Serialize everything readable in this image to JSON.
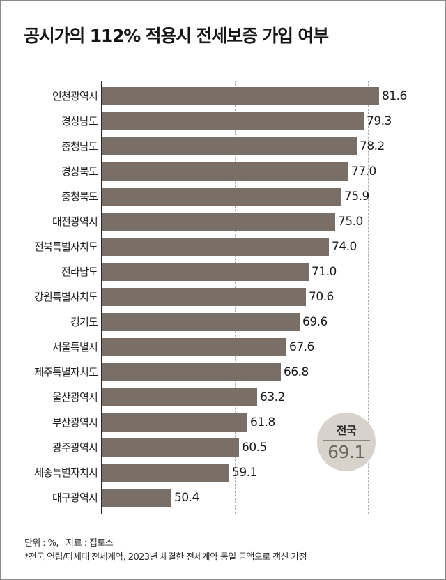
{
  "title": "공시가의 112% 적용시 전세보증 가입 여부",
  "chart_data": {
    "type": "bar",
    "orientation": "horizontal",
    "title": "공시가의 112% 적용시 전세보증 가입 여부",
    "xlabel": "",
    "ylabel": "",
    "unit": "%",
    "xlim": [
      40,
      85
    ],
    "gridlines": [
      50,
      60,
      70,
      80
    ],
    "grid": true,
    "categories": [
      "인천광역시",
      "경상남도",
      "충청남도",
      "경상북도",
      "충청북도",
      "대전광역시",
      "전북특별자치도",
      "전라남도",
      "강원특별자치도",
      "경기도",
      "서울특별시",
      "제주특별자치도",
      "울산광역시",
      "부산광역시",
      "광주광역시",
      "세종특별자치시",
      "대구광역시"
    ],
    "values": [
      81.6,
      79.3,
      78.2,
      77.0,
      75.9,
      75.0,
      74.0,
      71.0,
      70.6,
      69.6,
      67.6,
      66.8,
      63.2,
      61.8,
      60.5,
      59.1,
      50.4
    ],
    "value_labels": [
      "81.6",
      "79.3",
      "78.2",
      "77.0",
      "75.9",
      "75.0",
      "74.0",
      "71.0",
      "70.6",
      "69.6",
      "67.6",
      "66.8",
      "63.2",
      "61.8",
      "60.5",
      "59.1",
      "50.4"
    ],
    "bar_color": "#7a6f66",
    "annotation": {
      "label": "전국",
      "value": "69.1"
    }
  },
  "badge": {
    "label": "전국",
    "value": "69.1"
  },
  "footer": {
    "unit_source": "단위 : %,   자료 : 집토스",
    "note": "*전국 연립/다세대 전세계약, 2023년 체결한 전세계약 동일 금액으로 갱신 가정"
  }
}
